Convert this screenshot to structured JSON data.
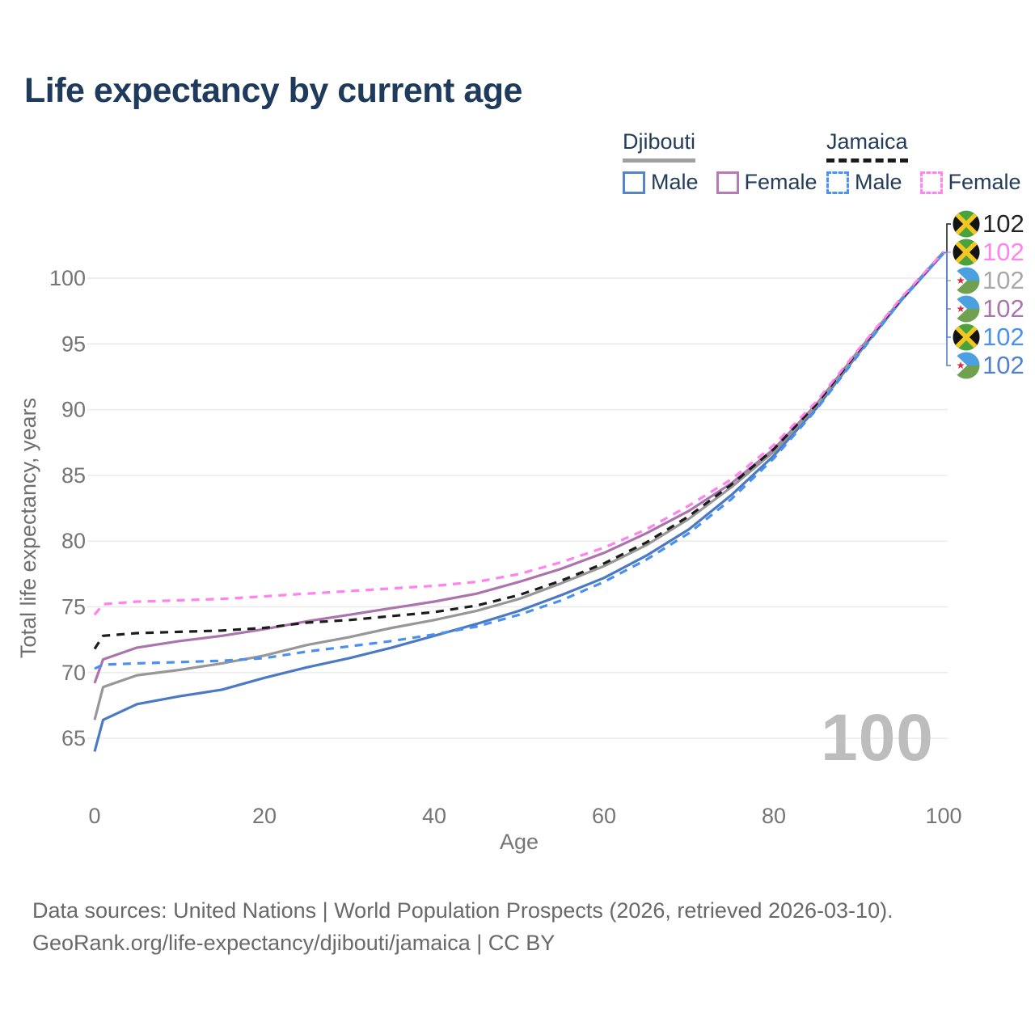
{
  "title": "Life expectancy by current age",
  "watermark_age": "100",
  "legend": {
    "groups": [
      {
        "label": "Djibouti",
        "underline_color": "#a0a0a0",
        "underline_style": "solid",
        "items": [
          {
            "label": "Male",
            "color": "#5585c8",
            "dash": false
          },
          {
            "label": "Female",
            "color": "#b77ab4",
            "dash": false
          }
        ]
      },
      {
        "label": "Jamaica",
        "underline_color": "#1a1a1a",
        "underline_style": "dashed",
        "items": [
          {
            "label": "Male",
            "color": "#4d94f2",
            "dash": true
          },
          {
            "label": "Female",
            "color": "#ff85f0",
            "dash": true
          }
        ]
      }
    ]
  },
  "chart_data": {
    "type": "line",
    "title": "Life expectancy by current age",
    "xlabel": "Age",
    "ylabel": "Total life expectancy, years",
    "xlim": [
      0,
      100
    ],
    "ylim": [
      63.5,
      103
    ],
    "x_ticks": [
      0,
      20,
      40,
      60,
      80,
      100
    ],
    "y_ticks": [
      65,
      70,
      75,
      80,
      85,
      90,
      95,
      100
    ],
    "grid": "horizontal-only",
    "legend_position": "top-right",
    "x": [
      0,
      1,
      5,
      10,
      15,
      20,
      25,
      30,
      35,
      40,
      45,
      50,
      55,
      60,
      65,
      70,
      75,
      80,
      85,
      90,
      95,
      100
    ],
    "series": [
      {
        "name": "Djibouti Male",
        "country": "Djibouti",
        "sex": "Male",
        "style": "solid",
        "color": "#4b79c4",
        "end_label": "102",
        "values": [
          64.0,
          66.4,
          67.6,
          68.2,
          68.7,
          69.6,
          70.4,
          71.1,
          71.9,
          72.8,
          73.7,
          74.7,
          75.9,
          77.2,
          78.9,
          80.9,
          83.5,
          86.5,
          90.1,
          94.3,
          98.3,
          101.9
        ]
      },
      {
        "name": "Djibouti Female",
        "country": "Djibouti",
        "sex": "Female",
        "style": "solid",
        "color": "#ab74ad",
        "end_label": "102",
        "values": [
          69.2,
          71.0,
          71.9,
          72.4,
          72.8,
          73.3,
          73.9,
          74.4,
          74.9,
          75.4,
          76.0,
          76.9,
          77.9,
          79.1,
          80.6,
          82.3,
          84.4,
          87.0,
          90.4,
          94.5,
          98.4,
          102.0
        ]
      },
      {
        "name": "Djibouti",
        "country": "Djibouti",
        "sex": "Both",
        "style": "solid",
        "color": "#979797",
        "end_label": "102",
        "values": [
          66.4,
          68.9,
          69.8,
          70.2,
          70.7,
          71.3,
          72.1,
          72.7,
          73.4,
          74.0,
          74.7,
          75.6,
          76.8,
          78.1,
          79.7,
          81.7,
          84.1,
          86.8,
          90.3,
          94.4,
          98.4,
          102.0
        ]
      },
      {
        "name": "Jamaica",
        "country": "Jamaica",
        "sex": "Both",
        "style": "dashed",
        "color": "#1c1c1c",
        "end_label": "102",
        "values": [
          71.8,
          72.8,
          73.0,
          73.1,
          73.2,
          73.4,
          73.8,
          74.0,
          74.3,
          74.6,
          75.1,
          75.9,
          77.0,
          78.3,
          79.9,
          81.9,
          84.3,
          87.0,
          90.4,
          94.5,
          98.4,
          102.0
        ]
      },
      {
        "name": "Jamaica Male",
        "country": "Jamaica",
        "sex": "Male",
        "style": "dashed",
        "color": "#4a90f0",
        "end_label": "102",
        "values": [
          70.3,
          70.6,
          70.7,
          70.8,
          70.9,
          71.1,
          71.6,
          72.0,
          72.4,
          72.9,
          73.5,
          74.4,
          75.5,
          76.9,
          78.6,
          80.6,
          83.2,
          86.3,
          90.0,
          94.2,
          98.3,
          101.9
        ]
      },
      {
        "name": "Jamaica Female",
        "country": "Jamaica",
        "sex": "Female",
        "style": "dashed",
        "color": "#ff82ee",
        "end_label": "102",
        "values": [
          74.4,
          75.2,
          75.4,
          75.5,
          75.6,
          75.8,
          76.0,
          76.2,
          76.4,
          76.6,
          76.9,
          77.5,
          78.4,
          79.5,
          80.9,
          82.7,
          84.7,
          87.3,
          90.6,
          94.6,
          98.5,
          102.0
        ]
      }
    ],
    "end_labels": [
      {
        "flag": "jamaica",
        "text": "102",
        "color": "#222222",
        "series": "Jamaica"
      },
      {
        "flag": "jamaica",
        "text": "102",
        "color": "#ff82ee",
        "series": "Jamaica Female"
      },
      {
        "flag": "djibouti",
        "text": "102",
        "color": "#a8a8a8",
        "series": "Djibouti"
      },
      {
        "flag": "djibouti",
        "text": "102",
        "color": "#ab74ad",
        "series": "Djibouti Female"
      },
      {
        "flag": "jamaica",
        "text": "102",
        "color": "#4a90f0",
        "series": "Jamaica Male"
      },
      {
        "flag": "djibouti",
        "text": "102",
        "color": "#5181ce",
        "series": "Djibouti Male"
      }
    ]
  },
  "footer": {
    "line1": "Data sources: United Nations | World Population Prospects (2026, retrieved 2026-03-10).",
    "line2": "GeoRank.org/life-expectancy/djibouti/jamaica | CC BY"
  }
}
